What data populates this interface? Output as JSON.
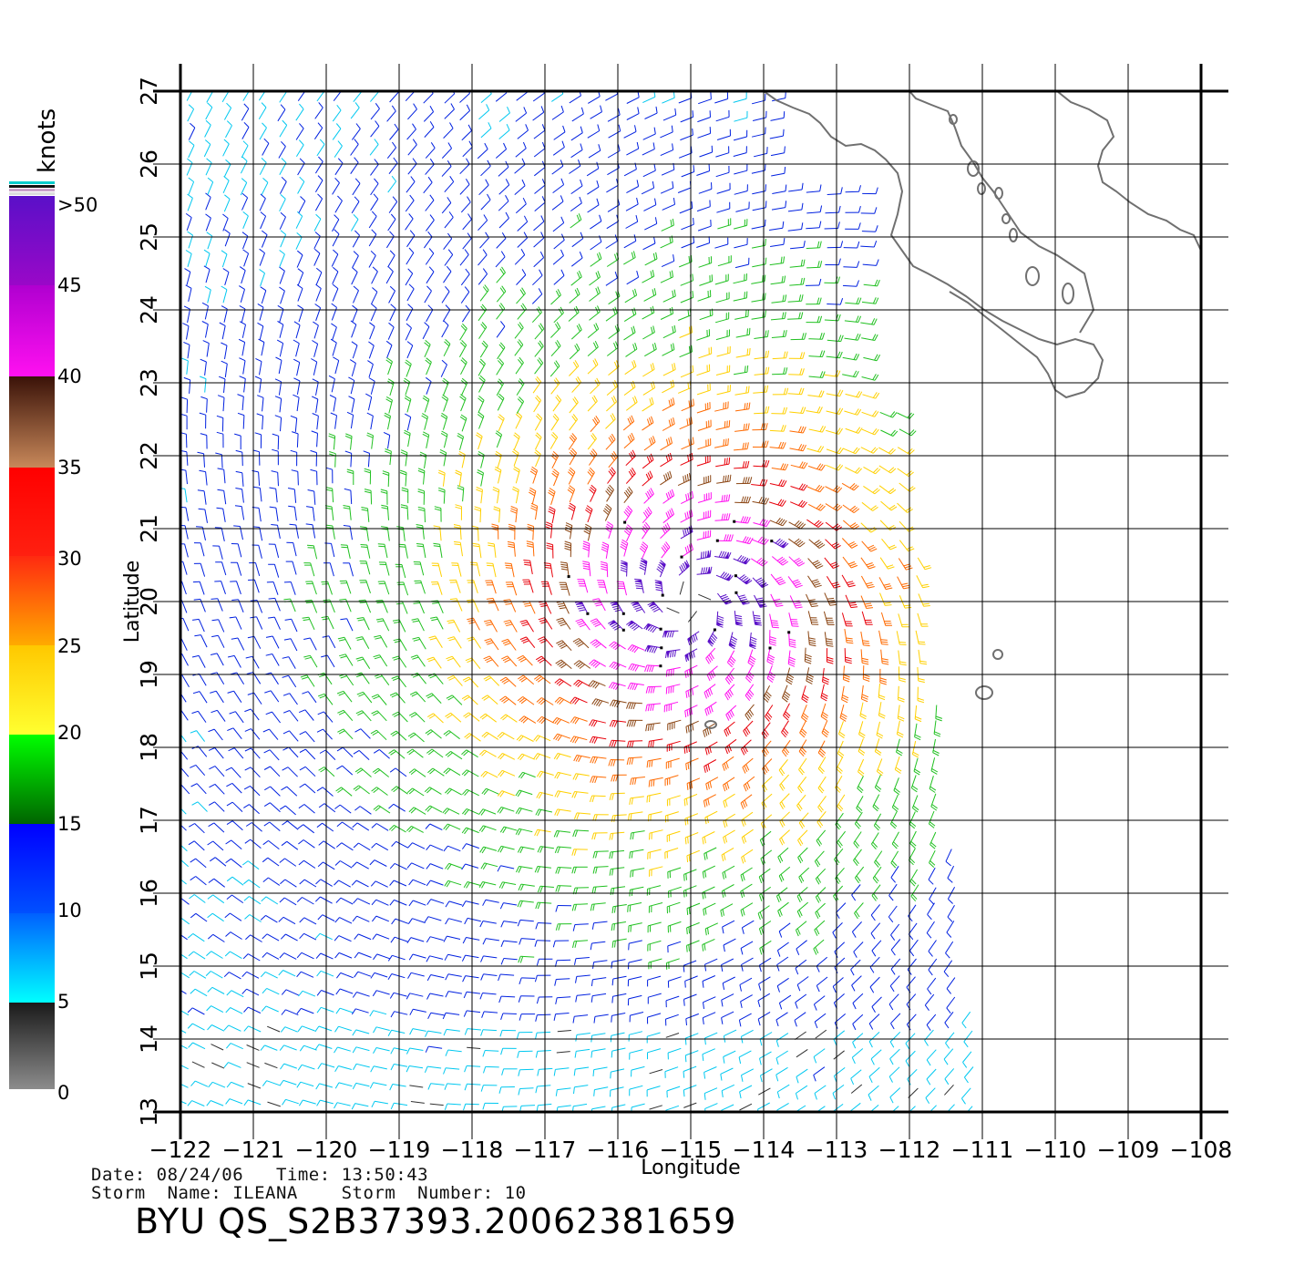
{
  "map": {
    "extent": {
      "lon_min": -122,
      "lon_max": -108,
      "lat_min": 13,
      "lat_max": 27
    },
    "x_ticks": [
      "−122",
      "−121",
      "−120",
      "−119",
      "−118",
      "−117",
      "−116",
      "−115",
      "−114",
      "−113",
      "−112",
      "−111",
      "−110",
      "−109",
      "−108"
    ],
    "y_ticks": [
      "13",
      "14",
      "15",
      "16",
      "17",
      "18",
      "19",
      "20",
      "21",
      "22",
      "23",
      "24",
      "25",
      "26",
      "27"
    ],
    "xlabel": "Longitude",
    "ylabel": "Latitude",
    "storm_center": {
      "lon": -115.0,
      "lat": 20.0
    },
    "coastline_color": "#707070",
    "gridline_color": "#000000"
  },
  "colorbar": {
    "title": "knots",
    "labels": [
      ">50",
      "45",
      "40",
      "35",
      "30",
      "25",
      "20",
      "15",
      "10",
      "5",
      "0"
    ],
    "segments": [
      {
        "range": "45-50",
        "top": "#5a10c8",
        "bottom": "#9a08c8"
      },
      {
        "range": "40-45",
        "top": "#b000d0",
        "bottom": "#ff10f0"
      },
      {
        "range": "35-40",
        "top": "#3a1208",
        "bottom": "#c8885a"
      },
      {
        "range": "30-35",
        "top": "#ff0000",
        "bottom": "#ff2010"
      },
      {
        "range": "25-30",
        "top": "#ff2a10",
        "bottom": "#ffaa00"
      },
      {
        "range": "20-25",
        "top": "#ffc800",
        "bottom": "#ffff30"
      },
      {
        "range": "15-20",
        "top": "#00ff00",
        "bottom": "#006400"
      },
      {
        "range": "10-15",
        "top": "#0000ff",
        "bottom": "#0050ff"
      },
      {
        "range": "5-10",
        "top": "#0060ff",
        "bottom": "#00ffff"
      },
      {
        "range": "0-5",
        "top": "#1a1a1a",
        "bottom": "#8c8c8c"
      }
    ]
  },
  "info": {
    "line1": "Date: 08/24/06   Time: 13:50:43",
    "line2": "Storm  Name: ILEANA    Storm  Number: 10",
    "product_id": "BYU  QS_S2B37393.20062381659"
  }
}
